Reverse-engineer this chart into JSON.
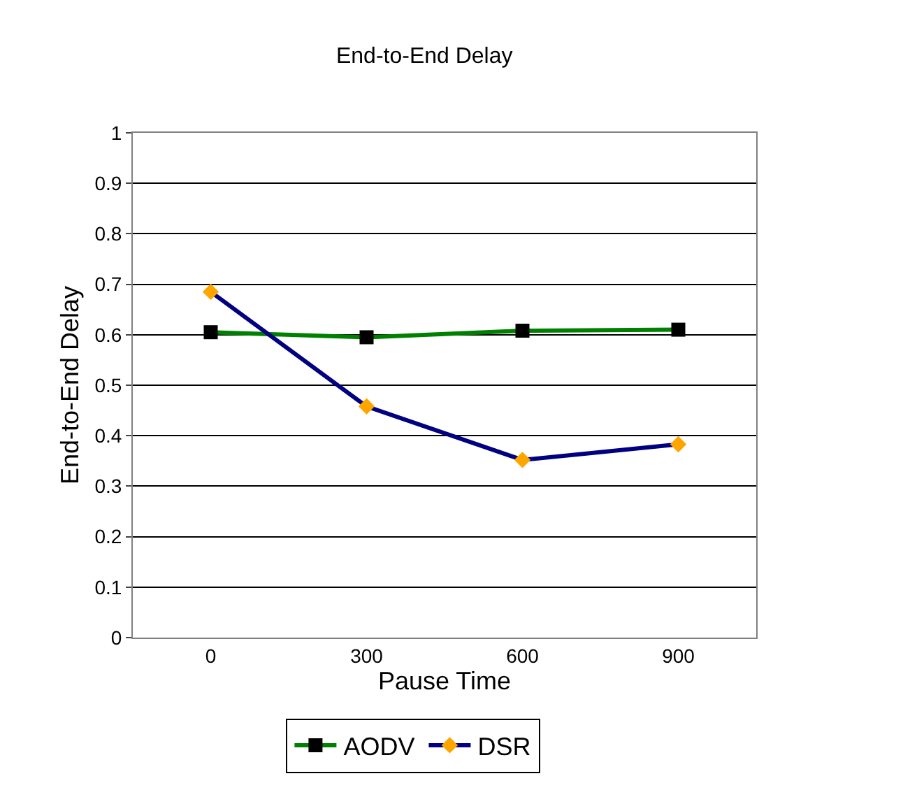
{
  "chart_data": {
    "type": "line",
    "title": "End-to-End Delay",
    "xlabel": "Pause Time",
    "ylabel": "End-to-End Delay",
    "categories": [
      "0",
      "300",
      "600",
      "900"
    ],
    "series": [
      {
        "name": "AODV",
        "color": "#008000",
        "marker": "square",
        "colors": [
          "#000000",
          "#000000",
          "#000000",
          "#000000"
        ],
        "values": [
          0.605,
          0.595,
          0.608,
          0.61
        ]
      },
      {
        "name": "DSR",
        "color": "#000080",
        "marker": "diamond",
        "colors": [
          "#ffa500",
          "#ffa500",
          "#ffa500",
          "#ffa500"
        ],
        "values": [
          0.685,
          0.458,
          0.352,
          0.383
        ]
      }
    ],
    "ylim": [
      0,
      1
    ],
    "yticks": [
      0,
      0.1,
      0.2,
      0.3,
      0.4,
      0.5,
      0.6,
      0.7,
      0.8,
      0.9,
      1
    ],
    "grid": "y",
    "legend": "bottom"
  }
}
